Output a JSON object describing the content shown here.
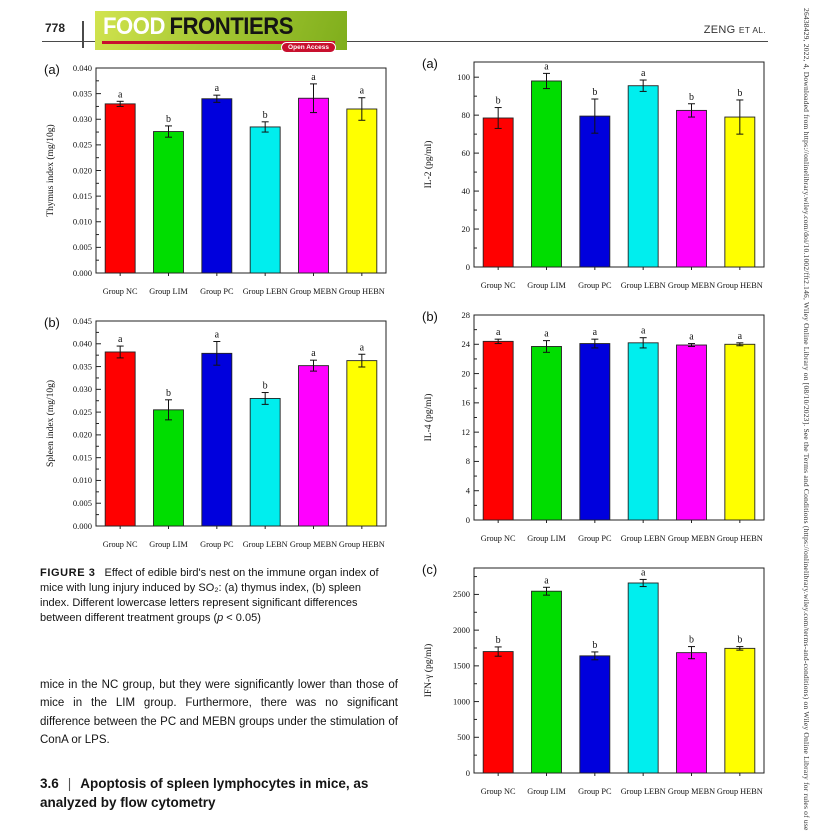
{
  "header": {
    "page_number": "778",
    "journal_word1": "FOOD",
    "journal_word2": "FRONTIERS",
    "open_access_badge": "Open Access",
    "running_head_author": "ZENG",
    "running_head_etal": "ET AL."
  },
  "sidebar_note": "26438429, 2022, 4, Downloaded from https://onlinelibrary.wiley.com/doi/10.1002/fft2.146, Wiley Online Library on [08/10/2023]. See the Terms and Conditions (https://onlinelibrary.wiley.com/terms-and-conditions) on Wiley Online Library for rules of use",
  "figure_caption": {
    "label": "FIGURE 3",
    "text": "Effect of edible bird's nest on the immune organ index of mice with lung injury induced by SO₂: (a) thymus index, (b) spleen index. Different lowercase letters represent significant differences between different treatment groups (",
    "p_symbol": "p",
    "text_end": " < 0.05)"
  },
  "body_text": {
    "paragraph": "mice in the NC group, but they were significantly lower than those of mice in the LIM group. Furthermore, there was no significant difference between the PC and MEBN groups under the stimulation of ConA or LPS."
  },
  "section_heading": {
    "number": "3.6",
    "divider": "|",
    "title": "Apoptosis of spleen lymphocytes in mice, as analyzed by flow cytometry"
  },
  "colors": {
    "logo_gradient_start": "#d2e44f",
    "logo_gradient_end": "#7fae1c",
    "logo_red": "#c8102e",
    "axis": "#222222"
  },
  "chart_data": [
    {
      "type": "bar",
      "panel": "(a)",
      "ylabel": "Thymus index (mg/10g)",
      "ylim": [
        0,
        0.04
      ],
      "ytick_step": 0.005,
      "ytick_max": 0.04,
      "ydecimals": 3,
      "categories": [
        "Group NC",
        "Group LIM",
        "Group PC",
        "Group LEBN",
        "Group MEBN",
        "Group HEBN"
      ],
      "values": [
        0.033,
        0.0276,
        0.034,
        0.0285,
        0.0341,
        0.032
      ],
      "errors": [
        0.0005,
        0.0011,
        0.0007,
        0.001,
        0.0028,
        0.0022
      ],
      "sig_letters": [
        "a",
        "b",
        "a",
        "b",
        "a",
        "a"
      ],
      "bar_colors": [
        "#ff0000",
        "#00dd00",
        "#0000dd",
        "#00eeee",
        "#ff00ff",
        "#ffff00"
      ],
      "grid": false,
      "legend": null
    },
    {
      "type": "bar",
      "panel": "(b)",
      "ylabel": "Spleen index (mg/10g)",
      "ylim": [
        0,
        0.045
      ],
      "ytick_step": 0.005,
      "ytick_max": 0.045,
      "ydecimals": 3,
      "categories": [
        "Group NC",
        "Group LIM",
        "Group PC",
        "Group LEBN",
        "Group MEBN",
        "Group HEBN"
      ],
      "values": [
        0.0382,
        0.0255,
        0.0379,
        0.028,
        0.0352,
        0.0363
      ],
      "errors": [
        0.0013,
        0.0022,
        0.0026,
        0.0013,
        0.0012,
        0.0014
      ],
      "sig_letters": [
        "a",
        "b",
        "a",
        "b",
        "a",
        "a"
      ],
      "bar_colors": [
        "#ff0000",
        "#00dd00",
        "#0000dd",
        "#00eeee",
        "#ff00ff",
        "#ffff00"
      ],
      "grid": false,
      "legend": null
    },
    {
      "type": "bar",
      "panel": "(a)",
      "ylabel": "IL-2 (pg/ml)",
      "ylim": [
        0,
        108
      ],
      "ytick_step": 20,
      "ytick_max": 100,
      "ydecimals": 0,
      "categories": [
        "Group NC",
        "Group LIM",
        "Group PC",
        "Group LEBN",
        "Group MEBN",
        "Group HEBN"
      ],
      "values": [
        78.5,
        98,
        79.5,
        95.5,
        82.5,
        79
      ],
      "errors": [
        5.5,
        4,
        9,
        3,
        3.5,
        9
      ],
      "sig_letters": [
        "b",
        "a",
        "b",
        "a",
        "b",
        "b"
      ],
      "bar_colors": [
        "#ff0000",
        "#00dd00",
        "#0000dd",
        "#00eeee",
        "#ff00ff",
        "#ffff00"
      ],
      "grid": false,
      "legend": null
    },
    {
      "type": "bar",
      "panel": "(b)",
      "ylabel": "IL-4 (pg/ml)",
      "ylim": [
        0,
        28
      ],
      "ytick_step": 4,
      "ytick_max": 28,
      "ydecimals": 0,
      "categories": [
        "Group NC",
        "Group LIM",
        "Group PC",
        "Group LEBN",
        "Group MEBN",
        "Group HEBN"
      ],
      "values": [
        24.4,
        23.7,
        24.1,
        24.2,
        23.9,
        24.0
      ],
      "errors": [
        0.3,
        0.8,
        0.6,
        0.7,
        0.2,
        0.2
      ],
      "sig_letters": [
        "a",
        "a",
        "a",
        "a",
        "a",
        "a"
      ],
      "bar_colors": [
        "#ff0000",
        "#00dd00",
        "#0000dd",
        "#00eeee",
        "#ff00ff",
        "#ffff00"
      ],
      "grid": false,
      "legend": null
    },
    {
      "type": "bar",
      "panel": "(c)",
      "ylabel": "IFN-γ (pg/ml)",
      "ylim": [
        0,
        2870
      ],
      "ytick_step": 500,
      "ytick_max": 2500,
      "ydecimals": 0,
      "categories": [
        "Group NC",
        "Group LIM",
        "Group PC",
        "Group LEBN",
        "Group MEBN",
        "Group HEBN"
      ],
      "values": [
        1700,
        2545,
        1640,
        2660,
        1685,
        1745
      ],
      "errors": [
        65,
        55,
        55,
        50,
        85,
        25
      ],
      "sig_letters": [
        "b",
        "a",
        "b",
        "a",
        "b",
        "b"
      ],
      "bar_colors": [
        "#ff0000",
        "#00dd00",
        "#0000dd",
        "#00eeee",
        "#ff00ff",
        "#ffff00"
      ],
      "grid": false,
      "legend": null
    }
  ]
}
